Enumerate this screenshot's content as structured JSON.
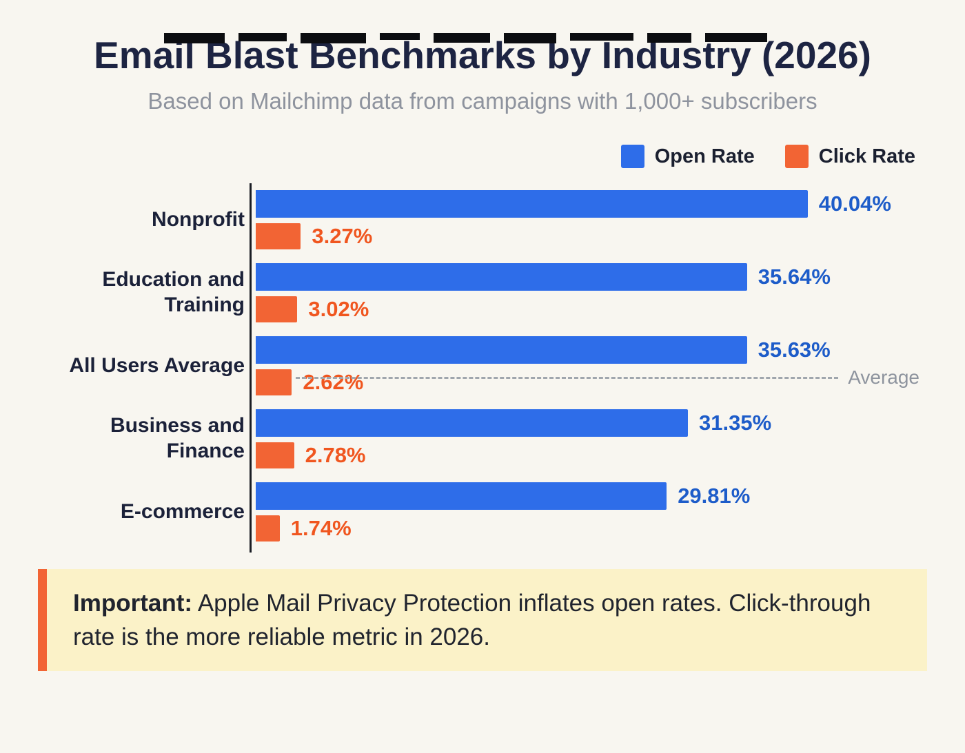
{
  "header": {
    "title": "Email Blast Benchmarks by Industry (2026)",
    "subtitle": "Based on Mailchimp data from campaigns with 1,000+ subscribers"
  },
  "chart_data": {
    "type": "bar",
    "orientation": "horizontal",
    "title": "Email Blast Benchmarks by Industry (2026)",
    "subtitle": "Based on Mailchimp data from campaigns with 1,000+ subscribers",
    "categories": [
      "Nonprofit",
      "Education and Training",
      "All Users Average",
      "Business and Finance",
      "E-commerce"
    ],
    "series": [
      {
        "name": "Open Rate",
        "color": "#2e6de9",
        "value_color": "#1d5cc9",
        "values": [
          40.04,
          35.64,
          35.63,
          31.35,
          29.81
        ]
      },
      {
        "name": "Click Rate",
        "color": "#f26434",
        "value_color": "#f0561f",
        "values": [
          3.27,
          3.02,
          2.62,
          2.78,
          1.74
        ]
      }
    ],
    "value_suffix": "%",
    "xlim": [
      0,
      49
    ],
    "grid": false,
    "legend_position": "top-right",
    "average_line": {
      "row_index": 2,
      "label": "Average"
    }
  },
  "note": {
    "prefix": "Important:",
    "text": " Apple Mail Privacy Protection inflates open rates. Click-through rate is the more reliable metric in 2026."
  }
}
